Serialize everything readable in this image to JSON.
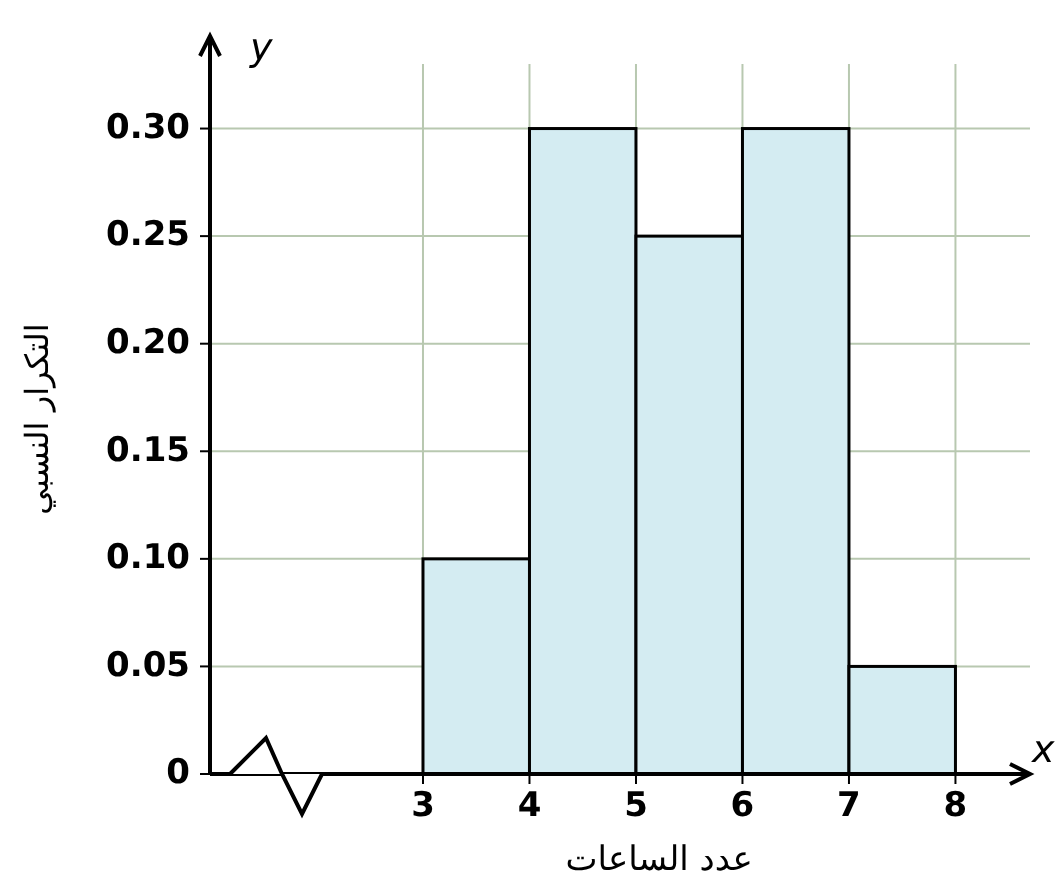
{
  "chart_data": {
    "type": "histogram",
    "xlabel": "عدد الساعات",
    "ylabel": "التكرار النسبي",
    "bins": [
      3,
      4,
      5,
      6,
      7,
      8
    ],
    "values": [
      0.1,
      0.3,
      0.25,
      0.3,
      0.05
    ],
    "color": "#d4ecf2",
    "xlim": [
      1,
      8.7
    ],
    "xticks": [
      3,
      4,
      5,
      6,
      7,
      8
    ],
    "ylim": [
      0,
      0.33
    ],
    "yticks": [
      0,
      {
        "value": 0.05,
        "label": "0.05"
      },
      {
        "value": 0.1,
        "label": "0.10"
      },
      {
        "value": 0.15,
        "label": "0.15"
      },
      {
        "value": 0.2,
        "label": "0.20"
      },
      {
        "value": 0.25,
        "label": "0.25"
      },
      {
        "value": 0.3,
        "label": "0.30"
      }
    ],
    "grid": true,
    "annotations": [
      "y",
      "x"
    ]
  }
}
